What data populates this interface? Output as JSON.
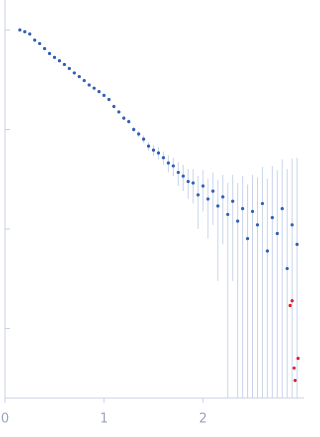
{
  "chart_data": {
    "type": "scatter",
    "log_y": true,
    "xlim": [
      0,
      3.02
    ],
    "xticks": [
      0,
      1,
      2
    ],
    "ylim": [
      0.0002,
      2
    ],
    "yticks": [
      1,
      0.1,
      0.01,
      0.001
    ],
    "series": [
      {
        "color": "#2f5fb3",
        "error_color": "#c8d4ea",
        "x": [
          0.15,
          0.2,
          0.25,
          0.3,
          0.35,
          0.4,
          0.45,
          0.5,
          0.55,
          0.6,
          0.65,
          0.7,
          0.75,
          0.8,
          0.85,
          0.9,
          0.95,
          1.0,
          1.05,
          1.1,
          1.15,
          1.2,
          1.25,
          1.3,
          1.35,
          1.4,
          1.45,
          1.5,
          1.55,
          1.6,
          1.65,
          1.7,
          1.75,
          1.8,
          1.85,
          1.9,
          1.95,
          2.0,
          2.05,
          2.1,
          2.15,
          2.2,
          2.25,
          2.3,
          2.35,
          2.4,
          2.45,
          2.5,
          2.55,
          2.6,
          2.65,
          2.7,
          2.75,
          2.8,
          2.85,
          2.9,
          2.95
        ],
        "values": [
          1.0,
          0.96,
          0.91,
          0.79,
          0.73,
          0.65,
          0.58,
          0.53,
          0.49,
          0.45,
          0.41,
          0.37,
          0.34,
          0.31,
          0.28,
          0.26,
          0.24,
          0.22,
          0.2,
          0.17,
          0.15,
          0.13,
          0.12,
          0.1,
          0.09,
          0.08,
          0.068,
          0.062,
          0.058,
          0.052,
          0.046,
          0.043,
          0.037,
          0.034,
          0.03,
          0.029,
          0.022,
          0.027,
          0.02,
          0.024,
          0.017,
          0.021,
          0.014,
          0.019,
          0.012,
          0.016,
          0.008,
          0.015,
          0.011,
          0.018,
          0.006,
          0.013,
          0.009,
          0.016,
          0.004,
          0.011,
          0.007
        ],
        "errors": [
          0.01,
          0.01,
          0.01,
          0.01,
          0.01,
          0.01,
          0.01,
          0.01,
          0.008,
          0.007,
          0.006,
          0.006,
          0.005,
          0.005,
          0.005,
          0.005,
          0.005,
          0.006,
          0.006,
          0.006,
          0.006,
          0.006,
          0.006,
          0.006,
          0.006,
          0.007,
          0.007,
          0.008,
          0.008,
          0.008,
          0.009,
          0.009,
          0.01,
          0.01,
          0.01,
          0.011,
          0.012,
          0.012,
          0.012,
          0.013,
          0.014,
          0.014,
          0.015,
          0.016,
          0.017,
          0.018,
          0.02,
          0.02,
          0.022,
          0.024,
          0.026,
          0.03,
          0.03,
          0.034,
          0.036,
          0.04,
          0.045
        ]
      },
      {
        "color": "#e02020",
        "x": [
          2.88,
          2.9,
          2.92,
          2.93,
          2.96
        ],
        "values": [
          0.0017,
          0.0019,
          0.0004,
          0.0003,
          0.0005
        ]
      }
    ]
  }
}
